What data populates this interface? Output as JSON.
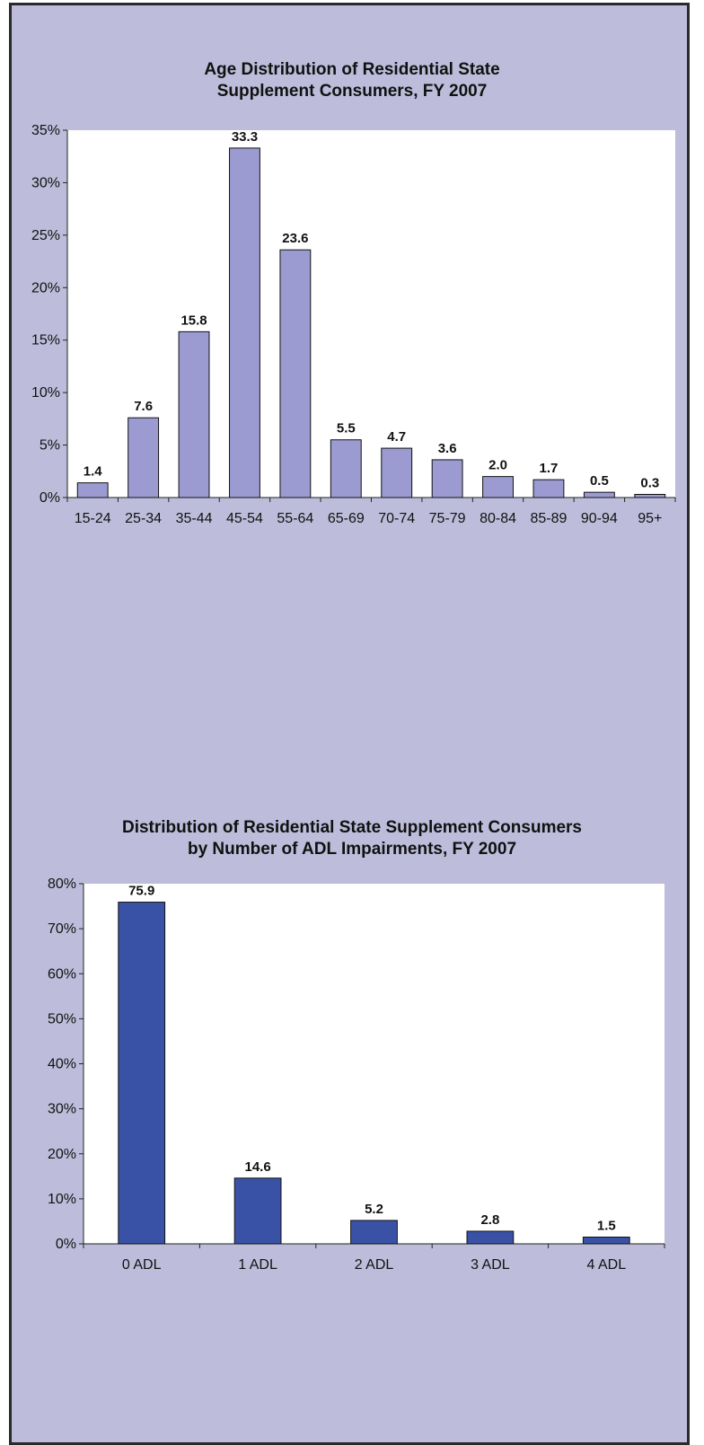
{
  "chart_data": [
    {
      "type": "bar",
      "title_line1": "Age Distribution of Residential State",
      "title_line2": "Supplement Consumers, FY 2007",
      "xlabel": "",
      "ylabel": "",
      "categories": [
        "15-24",
        "25-34",
        "35-44",
        "45-54",
        "55-64",
        "65-69",
        "70-74",
        "75-79",
        "80-84",
        "85-89",
        "90-94",
        "95+"
      ],
      "values": [
        1.4,
        7.6,
        15.8,
        33.3,
        23.6,
        5.5,
        4.7,
        3.6,
        2.0,
        1.7,
        0.5,
        0.3
      ],
      "value_labels": [
        "1.4",
        "7.6",
        "15.8",
        "33.3",
        "23.6",
        "5.5",
        "4.7",
        "3.6",
        "2.0",
        "1.7",
        "0.5",
        "0.3"
      ],
      "yticks": [
        "0%",
        "5%",
        "10%",
        "15%",
        "20%",
        "25%",
        "30%",
        "35%"
      ],
      "ylim": [
        0,
        35
      ],
      "bar_color": "#9b9bd2",
      "grid": false,
      "legend": "none"
    },
    {
      "type": "bar",
      "title_line1": "Distribution of Residential State Supplement Consumers",
      "title_line2": "by Number of ADL Impairments, FY 2007",
      "xlabel": "",
      "ylabel": "",
      "categories": [
        "0 ADL",
        "1 ADL",
        "2 ADL",
        "3 ADL",
        "4 ADL"
      ],
      "values": [
        75.9,
        14.6,
        5.2,
        2.8,
        1.5
      ],
      "value_labels": [
        "75.9",
        "14.6",
        "5.2",
        "2.8",
        "1.5"
      ],
      "yticks": [
        "0%",
        "10%",
        "20%",
        "30%",
        "40%",
        "50%",
        "60%",
        "70%",
        "80%"
      ],
      "ylim": [
        0,
        80
      ],
      "bar_color": "#3a52a6",
      "grid": false,
      "legend": "none"
    }
  ]
}
